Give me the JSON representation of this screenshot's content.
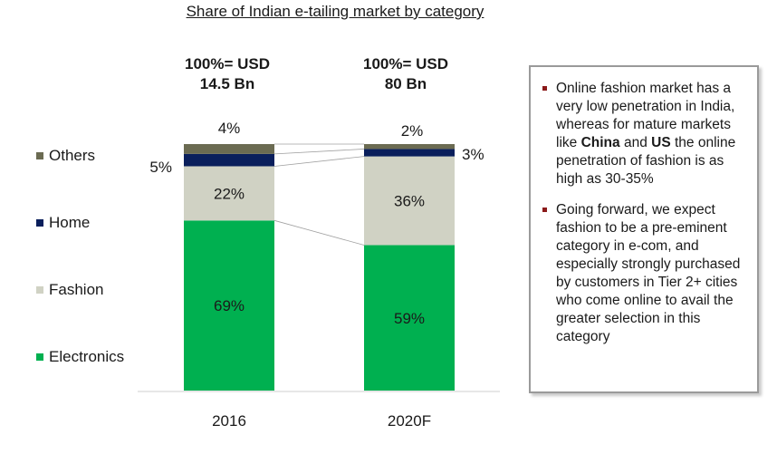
{
  "title": "Share of Indian e-tailing market by category",
  "chart_data": {
    "type": "bar",
    "stacked": true,
    "categories": [
      "2016",
      "2020F"
    ],
    "totals": [
      "100%= USD\n14.5 Bn",
      "100%= USD\n80 Bn"
    ],
    "series": [
      {
        "name": "Electronics",
        "values": [
          69,
          59
        ],
        "color": "#00b050",
        "labels": [
          "69%",
          "59%"
        ]
      },
      {
        "name": "Fashion",
        "values": [
          22,
          36
        ],
        "color": "#d0d2c4",
        "labels": [
          "22%",
          "36%"
        ]
      },
      {
        "name": "Home",
        "values": [
          5,
          3
        ],
        "color": "#0a1f5c",
        "labels": [
          "5%",
          "3%"
        ]
      },
      {
        "name": "Others",
        "values": [
          4,
          2
        ],
        "color": "#6b6b52",
        "labels": [
          "4%",
          "2%"
        ]
      }
    ],
    "legend": [
      "Others",
      "Home",
      "Fashion",
      "Electronics"
    ],
    "ylim": [
      0,
      100
    ]
  },
  "notes": [
    [
      {
        "t": "Online fashion market has a very low penetration in India, whereas for mature markets like ",
        "b": false
      },
      {
        "t": "China",
        "b": true
      },
      {
        "t": " and ",
        "b": false
      },
      {
        "t": "US",
        "b": true
      },
      {
        "t": " the online penetration of fashion is as high as 30-35%",
        "b": false
      }
    ],
    [
      {
        "t": "Going forward, we expect fashion to be a pre-eminent category in e-com, and especially strongly purchased by customers in Tier 2+ cities who come online to avail the greater selection in this category",
        "b": false
      }
    ]
  ]
}
